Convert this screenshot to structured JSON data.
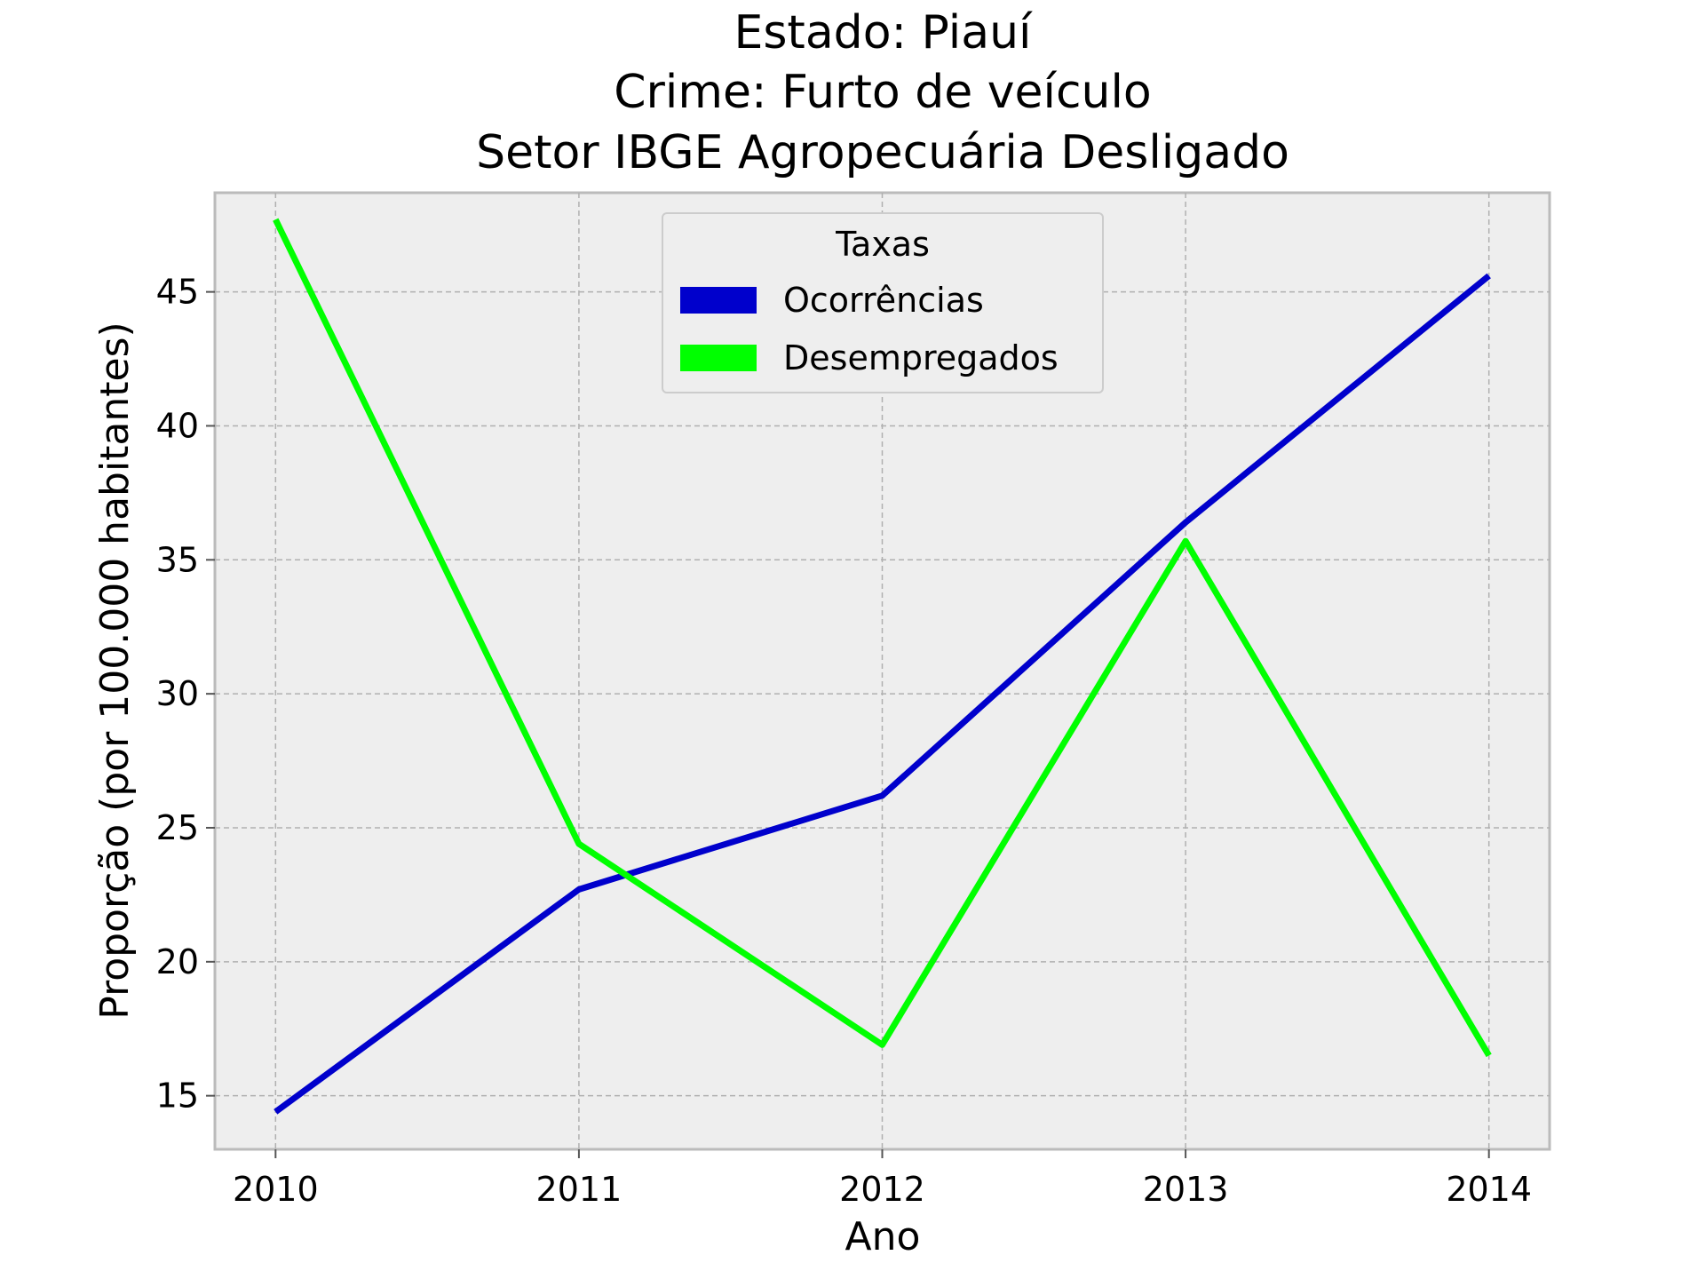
{
  "chart_data": {
    "type": "line",
    "title": [
      "Estado: Piauí",
      "Crime: Furto de veículo",
      "Setor IBGE  Agropecuária   Desligado"
    ],
    "xlabel": "Ano",
    "ylabel": "Proporção (por 100.000 habitantes)",
    "x": [
      2010,
      2011,
      2012,
      2013,
      2014
    ],
    "x_tick_labels": [
      "2010",
      "2011",
      "2012",
      "2013",
      "2014"
    ],
    "y_ticks": [
      15,
      20,
      25,
      30,
      35,
      40,
      45
    ],
    "y_tick_labels": [
      "15",
      "20",
      "25",
      "30",
      "35",
      "40",
      "45"
    ],
    "xlim": [
      2009.8,
      2014.2
    ],
    "ylim": [
      13.0,
      48.7
    ],
    "grid": true,
    "legend": {
      "title": "Taxas",
      "placement": "top-center"
    },
    "series": [
      {
        "name": "Ocorrências",
        "color": "#0000cc",
        "values": [
          14.4,
          22.7,
          26.2,
          36.4,
          45.6
        ]
      },
      {
        "name": "Desempregados",
        "color": "#00ff00",
        "values": [
          47.7,
          24.4,
          16.9,
          35.7,
          16.5
        ]
      }
    ]
  }
}
